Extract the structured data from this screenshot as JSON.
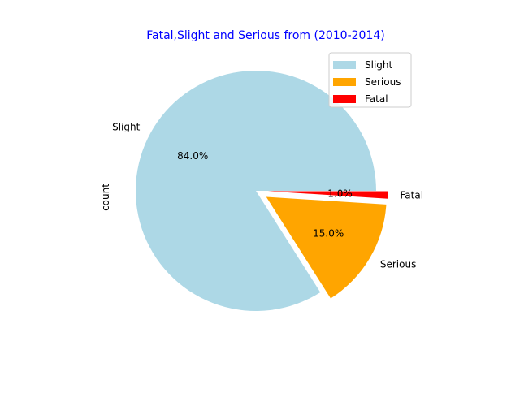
{
  "chart_data": {
    "type": "pie",
    "title": "Fatal,Slight and Serious from (2010-2014)",
    "title_color": "#0000ff",
    "ylabel": "count",
    "slices": [
      {
        "label": "Slight",
        "percent": 84.0,
        "pct_label": "84.0%",
        "color": "#add8e6",
        "explode": 0.0
      },
      {
        "label": "Serious",
        "percent": 15.0,
        "pct_label": "15.0%",
        "color": "#ffa500",
        "explode": 0.1
      },
      {
        "label": "Fatal",
        "percent": 1.0,
        "pct_label": "1.0%",
        "color": "#ff0000",
        "explode": 0.1
      }
    ],
    "legend": {
      "placement": "upper right",
      "entries": [
        "Slight",
        "Serious",
        "Fatal"
      ]
    },
    "start_angle_deg": 0,
    "direction": "counterclockwise"
  }
}
